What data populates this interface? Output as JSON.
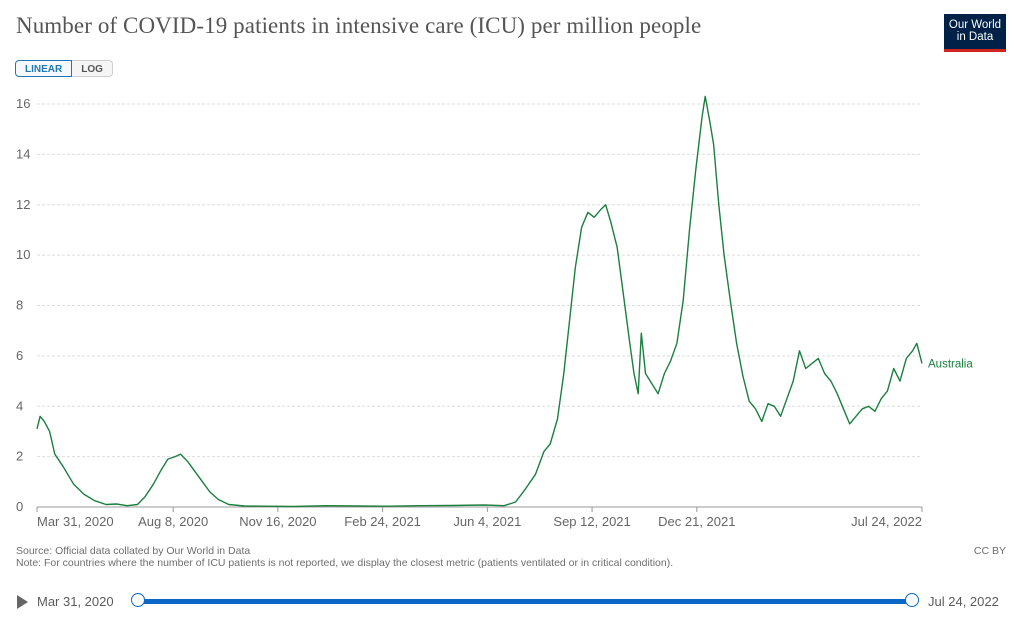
{
  "title": "Number of COVID-19 patients in intensive care (ICU) per million people",
  "logo": {
    "line1": "Our World",
    "line2": "in Data"
  },
  "scale_toggle": {
    "linear": "LINEAR",
    "log": "LOG"
  },
  "footer": {
    "source": "Source: Official data collated by Our World in Data",
    "note": "Note: For countries where the number of ICU patients is not reported, we display the closest metric (patients ventilated or in critical condition).",
    "license": "CC BY"
  },
  "timeline": {
    "start": "Mar 31, 2020",
    "end": "Jul 24, 2022"
  },
  "colors": {
    "line": "#1b7f3f",
    "grid": "#dddddd",
    "timeline": "#0a67c6"
  },
  "chart_data": {
    "type": "line",
    "title": "Number of COVID-19 patients in intensive care (ICU) per million people",
    "xlabel": "",
    "ylabel": "",
    "ylim": [
      0,
      16
    ],
    "yticks": [
      0,
      2,
      4,
      6,
      8,
      10,
      12,
      14,
      16
    ],
    "xlim": [
      "2020-03-31",
      "2022-07-24"
    ],
    "xticks": [
      {
        "date": "2020-03-31",
        "label": "Mar 31, 2020"
      },
      {
        "date": "2020-08-08",
        "label": "Aug 8, 2020"
      },
      {
        "date": "2020-11-16",
        "label": "Nov 16, 2020"
      },
      {
        "date": "2021-02-24",
        "label": "Feb 24, 2021"
      },
      {
        "date": "2021-06-04",
        "label": "Jun 4, 2021"
      },
      {
        "date": "2021-09-12",
        "label": "Sep 12, 2021"
      },
      {
        "date": "2021-12-21",
        "label": "Dec 21, 2021"
      },
      {
        "date": "2022-07-24",
        "label": "Jul 24, 2022"
      }
    ],
    "grid": "horizontal dashed",
    "series": [
      {
        "name": "Australia",
        "color": "#1b7f3f",
        "points": [
          [
            "2020-03-31",
            3.1
          ],
          [
            "2020-04-03",
            3.6
          ],
          [
            "2020-04-07",
            3.4
          ],
          [
            "2020-04-12",
            3.0
          ],
          [
            "2020-04-17",
            2.1
          ],
          [
            "2020-04-25",
            1.6
          ],
          [
            "2020-05-05",
            0.9
          ],
          [
            "2020-05-15",
            0.5
          ],
          [
            "2020-05-25",
            0.25
          ],
          [
            "2020-06-05",
            0.1
          ],
          [
            "2020-06-15",
            0.12
          ],
          [
            "2020-06-25",
            0.05
          ],
          [
            "2020-07-05",
            0.1
          ],
          [
            "2020-07-12",
            0.4
          ],
          [
            "2020-07-20",
            0.9
          ],
          [
            "2020-07-28",
            1.5
          ],
          [
            "2020-08-03",
            1.9
          ],
          [
            "2020-08-10",
            2.0
          ],
          [
            "2020-08-15",
            2.1
          ],
          [
            "2020-08-22",
            1.8
          ],
          [
            "2020-08-29",
            1.4
          ],
          [
            "2020-09-05",
            1.0
          ],
          [
            "2020-09-12",
            0.6
          ],
          [
            "2020-09-20",
            0.3
          ],
          [
            "2020-09-30",
            0.1
          ],
          [
            "2020-10-15",
            0.04
          ],
          [
            "2020-11-01",
            0.03
          ],
          [
            "2020-12-01",
            0.02
          ],
          [
            "2021-01-01",
            0.05
          ],
          [
            "2021-02-01",
            0.04
          ],
          [
            "2021-03-01",
            0.03
          ],
          [
            "2021-04-01",
            0.05
          ],
          [
            "2021-05-01",
            0.06
          ],
          [
            "2021-06-01",
            0.08
          ],
          [
            "2021-06-20",
            0.05
          ],
          [
            "2021-07-01",
            0.2
          ],
          [
            "2021-07-10",
            0.7
          ],
          [
            "2021-07-20",
            1.3
          ],
          [
            "2021-07-28",
            2.2
          ],
          [
            "2021-08-03",
            2.5
          ],
          [
            "2021-08-10",
            3.5
          ],
          [
            "2021-08-16",
            5.3
          ],
          [
            "2021-08-22",
            7.6
          ],
          [
            "2021-08-27",
            9.5
          ],
          [
            "2021-09-02",
            11.1
          ],
          [
            "2021-09-08",
            11.7
          ],
          [
            "2021-09-14",
            11.5
          ],
          [
            "2021-09-20",
            11.8
          ],
          [
            "2021-09-25",
            12.0
          ],
          [
            "2021-09-30",
            11.3
          ],
          [
            "2021-10-06",
            10.3
          ],
          [
            "2021-10-12",
            8.4
          ],
          [
            "2021-10-18",
            6.5
          ],
          [
            "2021-10-22",
            5.3
          ],
          [
            "2021-10-26",
            4.5
          ],
          [
            "2021-10-29",
            6.9
          ],
          [
            "2021-11-02",
            5.3
          ],
          [
            "2021-11-08",
            4.9
          ],
          [
            "2021-11-14",
            4.5
          ],
          [
            "2021-11-20",
            5.3
          ],
          [
            "2021-11-26",
            5.8
          ],
          [
            "2021-12-02",
            6.5
          ],
          [
            "2021-12-08",
            8.2
          ],
          [
            "2021-12-14",
            11.0
          ],
          [
            "2021-12-20",
            13.4
          ],
          [
            "2021-12-26",
            15.5
          ],
          [
            "2021-12-29",
            16.3
          ],
          [
            "2022-01-02",
            15.4
          ],
          [
            "2022-01-06",
            14.4
          ],
          [
            "2022-01-11",
            12.0
          ],
          [
            "2022-01-16",
            10.0
          ],
          [
            "2022-01-22",
            8.2
          ],
          [
            "2022-01-28",
            6.5
          ],
          [
            "2022-02-03",
            5.2
          ],
          [
            "2022-02-09",
            4.2
          ],
          [
            "2022-02-15",
            3.9
          ],
          [
            "2022-02-21",
            3.4
          ],
          [
            "2022-02-27",
            4.1
          ],
          [
            "2022-03-05",
            4.0
          ],
          [
            "2022-03-11",
            3.6
          ],
          [
            "2022-03-17",
            4.3
          ],
          [
            "2022-03-23",
            5.0
          ],
          [
            "2022-03-29",
            6.2
          ],
          [
            "2022-04-04",
            5.5
          ],
          [
            "2022-04-10",
            5.7
          ],
          [
            "2022-04-16",
            5.9
          ],
          [
            "2022-04-22",
            5.3
          ],
          [
            "2022-04-28",
            5.0
          ],
          [
            "2022-05-04",
            4.5
          ],
          [
            "2022-05-10",
            3.9
          ],
          [
            "2022-05-16",
            3.3
          ],
          [
            "2022-05-22",
            3.6
          ],
          [
            "2022-05-28",
            3.9
          ],
          [
            "2022-06-03",
            4.0
          ],
          [
            "2022-06-09",
            3.8
          ],
          [
            "2022-06-15",
            4.3
          ],
          [
            "2022-06-21",
            4.6
          ],
          [
            "2022-06-27",
            5.5
          ],
          [
            "2022-07-03",
            5.0
          ],
          [
            "2022-07-09",
            5.9
          ],
          [
            "2022-07-15",
            6.2
          ],
          [
            "2022-07-19",
            6.5
          ],
          [
            "2022-07-24",
            5.7
          ]
        ]
      }
    ]
  }
}
